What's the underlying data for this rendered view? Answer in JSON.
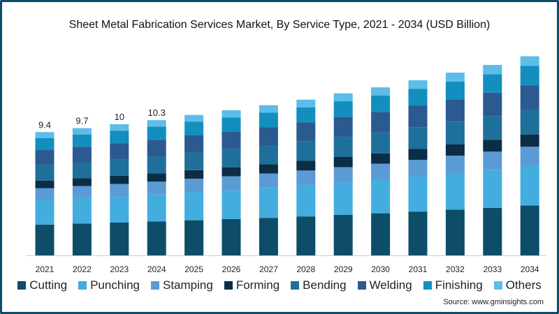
{
  "chart_data": {
    "type": "bar",
    "stacked": true,
    "title": "Sheet Metal Fabrication Services Market, By Service Type, 2021 - 2034 (USD Billion)",
    "xlabel": "",
    "ylabel": "",
    "categories": [
      "2021",
      "2022",
      "2023",
      "2024",
      "2025",
      "2026",
      "2027",
      "2028",
      "2029",
      "2030",
      "2031",
      "2032",
      "2033",
      "2034"
    ],
    "series": [
      {
        "name": "Cutting",
        "color": "#0d4d68",
        "values": [
          2.35,
          2.43,
          2.5,
          2.58,
          2.68,
          2.77,
          2.86,
          2.97,
          3.09,
          3.21,
          3.34,
          3.49,
          3.63,
          3.8
        ]
      },
      {
        "name": "Punching",
        "color": "#43ade0",
        "values": [
          1.88,
          1.94,
          2.0,
          2.06,
          2.14,
          2.21,
          2.29,
          2.37,
          2.47,
          2.56,
          2.67,
          2.79,
          2.9,
          3.04
        ]
      },
      {
        "name": "Stamping",
        "color": "#5b9bd5",
        "values": [
          0.89,
          0.92,
          0.95,
          0.98,
          1.02,
          1.05,
          1.09,
          1.13,
          1.17,
          1.22,
          1.27,
          1.32,
          1.38,
          1.44
        ]
      },
      {
        "name": "Forming",
        "color": "#0b2d45",
        "values": [
          0.58,
          0.6,
          0.62,
          0.64,
          0.66,
          0.69,
          0.71,
          0.74,
          0.77,
          0.79,
          0.83,
          0.86,
          0.9,
          0.94
        ]
      },
      {
        "name": "Bending",
        "color": "#1f6f9c",
        "values": [
          1.18,
          1.21,
          1.25,
          1.29,
          1.34,
          1.38,
          1.43,
          1.48,
          1.54,
          1.6,
          1.67,
          1.74,
          1.82,
          1.9
        ]
      },
      {
        "name": "Welding",
        "color": "#2a5a8f",
        "values": [
          1.15,
          1.18,
          1.22,
          1.26,
          1.31,
          1.35,
          1.4,
          1.45,
          1.51,
          1.56,
          1.63,
          1.7,
          1.77,
          1.85
        ]
      },
      {
        "name": "Finishing",
        "color": "#128fbe",
        "values": [
          0.91,
          0.94,
          0.97,
          1.0,
          1.04,
          1.07,
          1.11,
          1.15,
          1.2,
          1.24,
          1.29,
          1.35,
          1.41,
          1.47
        ]
      },
      {
        "name": "Others",
        "color": "#5cbde8",
        "values": [
          0.46,
          0.48,
          0.49,
          0.5,
          0.52,
          0.54,
          0.56,
          0.58,
          0.6,
          0.63,
          0.65,
          0.68,
          0.71,
          0.74
        ]
      }
    ],
    "data_labels": [
      {
        "category": "2021",
        "text": "9.4"
      },
      {
        "category": "2022",
        "text": "9.7"
      },
      {
        "category": "2023",
        "text": "10"
      },
      {
        "category": "2024",
        "text": "10.3"
      }
    ],
    "ylim": [
      0,
      16
    ],
    "grid": false,
    "legend_position": "bottom"
  },
  "source": "Source: www.gminsights.com"
}
